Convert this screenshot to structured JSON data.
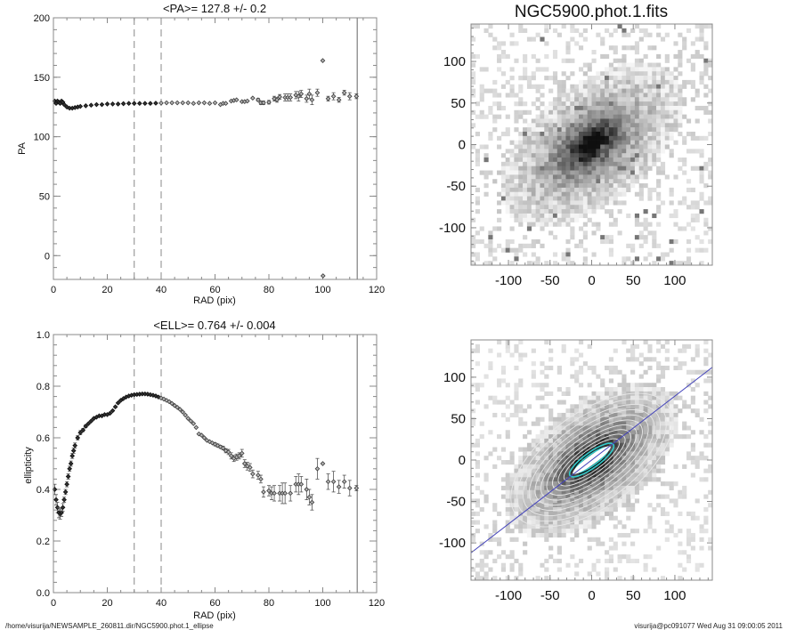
{
  "footer": {
    "path": "/home/visurija/NEWSAMPLE_260811.dir/NGC5900.phot.1_ellipse",
    "stamp": "visurija@pc091077  Wed Aug 31 09:00:05 2011"
  },
  "colors": {
    "axis": "#888888",
    "marker": "#222222",
    "majoraxis": "#4444bb",
    "contour": "#e8e8e8",
    "core": "#33cccc"
  },
  "chart_data": [
    {
      "type": "scatter",
      "title": "<PA>= 127.8 +/-   0.2",
      "xlabel": "RAD (pix)",
      "ylabel": "PA",
      "xlim": [
        0,
        120
      ],
      "ylim": [
        -20,
        200
      ],
      "xticks": [
        "0",
        "20",
        "40",
        "60",
        "80",
        "100",
        "120"
      ],
      "yticks": [
        "0",
        "50",
        "100",
        "150",
        "200"
      ],
      "ytick_values": [
        0,
        50,
        100,
        150,
        200
      ],
      "xtick_values": [
        0,
        20,
        40,
        60,
        80,
        100,
        120
      ],
      "vlines_dashed": [
        30,
        40
      ],
      "vline_solid": 112.8,
      "x": [
        0.5,
        1,
        1.5,
        2,
        2.5,
        3,
        3.5,
        4,
        5,
        6,
        7,
        8,
        9,
        10,
        12,
        14,
        16,
        18,
        20,
        22,
        24,
        26,
        28,
        30,
        32,
        34,
        36,
        38,
        40,
        42,
        44,
        46,
        48,
        50,
        52,
        54,
        56,
        58,
        60,
        62,
        63,
        64,
        66,
        67,
        68,
        70,
        71,
        72,
        74,
        76,
        77,
        78,
        80,
        82,
        83,
        84,
        86,
        87,
        88,
        90,
        91,
        92,
        94,
        95,
        96,
        98,
        100,
        100.1,
        102,
        104,
        106,
        108,
        110,
        112.5
      ],
      "y": [
        130,
        128,
        130,
        129,
        128,
        130,
        129,
        127,
        125,
        124,
        124,
        124.5,
        125,
        125.5,
        126,
        126.5,
        127,
        127,
        127.5,
        127.5,
        127.5,
        127.8,
        128,
        128,
        128,
        128,
        128,
        128.2,
        128.3,
        128.5,
        128.5,
        128.5,
        128.5,
        128.5,
        128,
        128.5,
        128.5,
        128,
        128.5,
        127,
        128,
        128,
        130,
        130.5,
        131,
        129.5,
        129.5,
        130,
        132.5,
        131,
        128.5,
        128.5,
        129,
        132,
        131,
        133.5,
        133,
        133,
        133,
        135,
        134,
        136,
        132,
        136,
        131,
        137,
        164,
        -17,
        132,
        134,
        131,
        137,
        134,
        134
      ],
      "err": [
        1,
        1,
        1,
        1,
        1,
        1,
        1,
        1,
        0.5,
        0.5,
        0.5,
        0.5,
        0.5,
        0.5,
        0.3,
        0.3,
        0.3,
        0.3,
        0.3,
        0.3,
        0.3,
        0.3,
        0.3,
        0.3,
        0.3,
        0.3,
        0.3,
        0.3,
        0.3,
        0.3,
        0.3,
        0.3,
        0.3,
        0.3,
        0.3,
        0.3,
        0.3,
        0.3,
        0.5,
        0.5,
        0.5,
        0.5,
        0.8,
        0.8,
        0.8,
        0.8,
        0.8,
        0.8,
        1,
        1.2,
        1.5,
        1.5,
        1.5,
        2,
        2,
        2,
        3,
        3,
        3,
        3,
        4,
        3,
        3,
        4,
        4,
        3,
        1,
        1,
        2,
        3,
        2,
        2,
        3,
        2
      ]
    },
    {
      "type": "scatter",
      "title": "<ELL>= 0.764 +/-  0.004",
      "xlabel": "RAD (pix)",
      "ylabel": "ellipticity",
      "xlim": [
        0,
        120
      ],
      "ylim": [
        0,
        1.0
      ],
      "xticks": [
        "0",
        "20",
        "40",
        "60",
        "80",
        "100",
        "120"
      ],
      "yticks": [
        "0.0",
        "0.2",
        "0.4",
        "0.6",
        "0.8",
        "1.0"
      ],
      "ytick_values": [
        0,
        0.2,
        0.4,
        0.6,
        0.8,
        1.0
      ],
      "xtick_values": [
        0,
        20,
        40,
        60,
        80,
        100,
        120
      ],
      "vlines_dashed": [
        30,
        40
      ],
      "vline_solid": 112.8,
      "x": [
        0.5,
        1,
        1.5,
        2,
        2.5,
        3,
        3.5,
        4,
        4.5,
        5,
        5.5,
        6,
        6.5,
        7,
        7.5,
        8,
        9,
        10,
        11,
        12,
        13,
        14,
        15,
        16,
        17,
        18,
        19,
        20,
        21,
        22,
        23,
        24,
        25,
        26,
        27,
        28,
        29,
        30,
        31,
        32,
        33,
        34,
        35,
        36,
        37,
        38,
        39,
        40,
        41,
        42,
        43,
        44,
        45,
        46,
        47,
        48,
        49,
        50,
        51,
        52,
        53,
        54,
        55,
        56,
        57,
        58,
        59,
        60,
        61,
        62,
        63,
        64,
        65,
        66,
        67,
        68,
        69,
        70,
        71,
        72,
        73,
        74,
        76,
        77,
        78,
        80,
        81,
        82,
        84,
        85,
        86,
        88,
        90,
        91,
        92,
        94,
        95,
        96,
        98,
        100,
        102,
        104,
        106,
        108,
        110,
        112.5
      ],
      "y": [
        0.4,
        0.36,
        0.33,
        0.31,
        0.305,
        0.31,
        0.33,
        0.36,
        0.39,
        0.42,
        0.45,
        0.48,
        0.5,
        0.53,
        0.55,
        0.57,
        0.6,
        0.62,
        0.63,
        0.645,
        0.655,
        0.665,
        0.675,
        0.68,
        0.685,
        0.685,
        0.69,
        0.69,
        0.695,
        0.705,
        0.72,
        0.735,
        0.745,
        0.752,
        0.758,
        0.762,
        0.765,
        0.767,
        0.768,
        0.769,
        0.77,
        0.77,
        0.769,
        0.767,
        0.765,
        0.762,
        0.758,
        0.754,
        0.75,
        0.745,
        0.74,
        0.733,
        0.725,
        0.718,
        0.71,
        0.7,
        0.688,
        0.675,
        0.665,
        0.655,
        0.64,
        0.615,
        0.61,
        0.6,
        0.59,
        0.585,
        0.58,
        0.575,
        0.57,
        0.565,
        0.56,
        0.55,
        0.545,
        0.53,
        0.52,
        0.525,
        0.53,
        0.54,
        0.5,
        0.49,
        0.485,
        0.46,
        0.455,
        0.44,
        0.39,
        0.395,
        0.385,
        0.385,
        0.385,
        0.385,
        0.385,
        0.385,
        0.42,
        0.42,
        0.42,
        0.4,
        0.37,
        0.35,
        0.48,
        0.5,
        0.43,
        0.43,
        0.41,
        0.43,
        0.405,
        0.405
      ],
      "err": [
        0.02,
        0.02,
        0.02,
        0.02,
        0.02,
        0.015,
        0.015,
        0.01,
        0.01,
        0.01,
        0.01,
        0.01,
        0.01,
        0.01,
        0.01,
        0.01,
        0.008,
        0.008,
        0.006,
        0.006,
        0.005,
        0.005,
        0.005,
        0.005,
        0.005,
        0.005,
        0.004,
        0.004,
        0.004,
        0.004,
        0.004,
        0.004,
        0.004,
        0.004,
        0.004,
        0.004,
        0.004,
        0.004,
        0.004,
        0.004,
        0.004,
        0.004,
        0.004,
        0.004,
        0.004,
        0.004,
        0.004,
        0.004,
        0.004,
        0.004,
        0.004,
        0.004,
        0.004,
        0.004,
        0.004,
        0.004,
        0.004,
        0.004,
        0.004,
        0.004,
        0.004,
        0.004,
        0.004,
        0.005,
        0.005,
        0.005,
        0.005,
        0.006,
        0.006,
        0.006,
        0.007,
        0.008,
        0.01,
        0.012,
        0.012,
        0.012,
        0.012,
        0.015,
        0.015,
        0.015,
        0.015,
        0.015,
        0.015,
        0.015,
        0.02,
        0.02,
        0.025,
        0.03,
        0.03,
        0.04,
        0.04,
        0.03,
        0.03,
        0.04,
        0.03,
        0.04,
        0.03,
        0.03,
        0.04,
        0.005,
        0.03,
        0.04,
        0.025,
        0.025,
        0.03,
        0.01
      ]
    },
    {
      "type": "heatmap",
      "title": "NGC5900.phot.1.fits",
      "xlim": [
        -145,
        145
      ],
      "ylim": [
        -145,
        145
      ],
      "xticks": [
        "-100",
        "-50",
        "0",
        "50",
        "100"
      ],
      "yticks": [
        "-100",
        "-50",
        "0",
        "50",
        "100"
      ],
      "xtick_values": [
        -100,
        -50,
        0,
        50,
        100
      ],
      "ytick_values": [
        -100,
        -50,
        0,
        50,
        100
      ],
      "galaxy_pa_deg": 127.8,
      "galaxy_ellipticity": 0.764
    },
    {
      "type": "heatmap",
      "title": "",
      "xlim": [
        -145,
        145
      ],
      "ylim": [
        -145,
        145
      ],
      "xticks": [
        "-100",
        "-50",
        "0",
        "50",
        "100"
      ],
      "yticks": [
        "-100",
        "-50",
        "0",
        "50",
        "100"
      ],
      "xtick_values": [
        -100,
        -50,
        0,
        50,
        100
      ],
      "ytick_values": [
        -100,
        -50,
        0,
        50,
        100
      ],
      "overlay": "isophote contours with major-axis line",
      "galaxy_pa_deg": 127.8,
      "galaxy_ellipticity": 0.764
    }
  ]
}
